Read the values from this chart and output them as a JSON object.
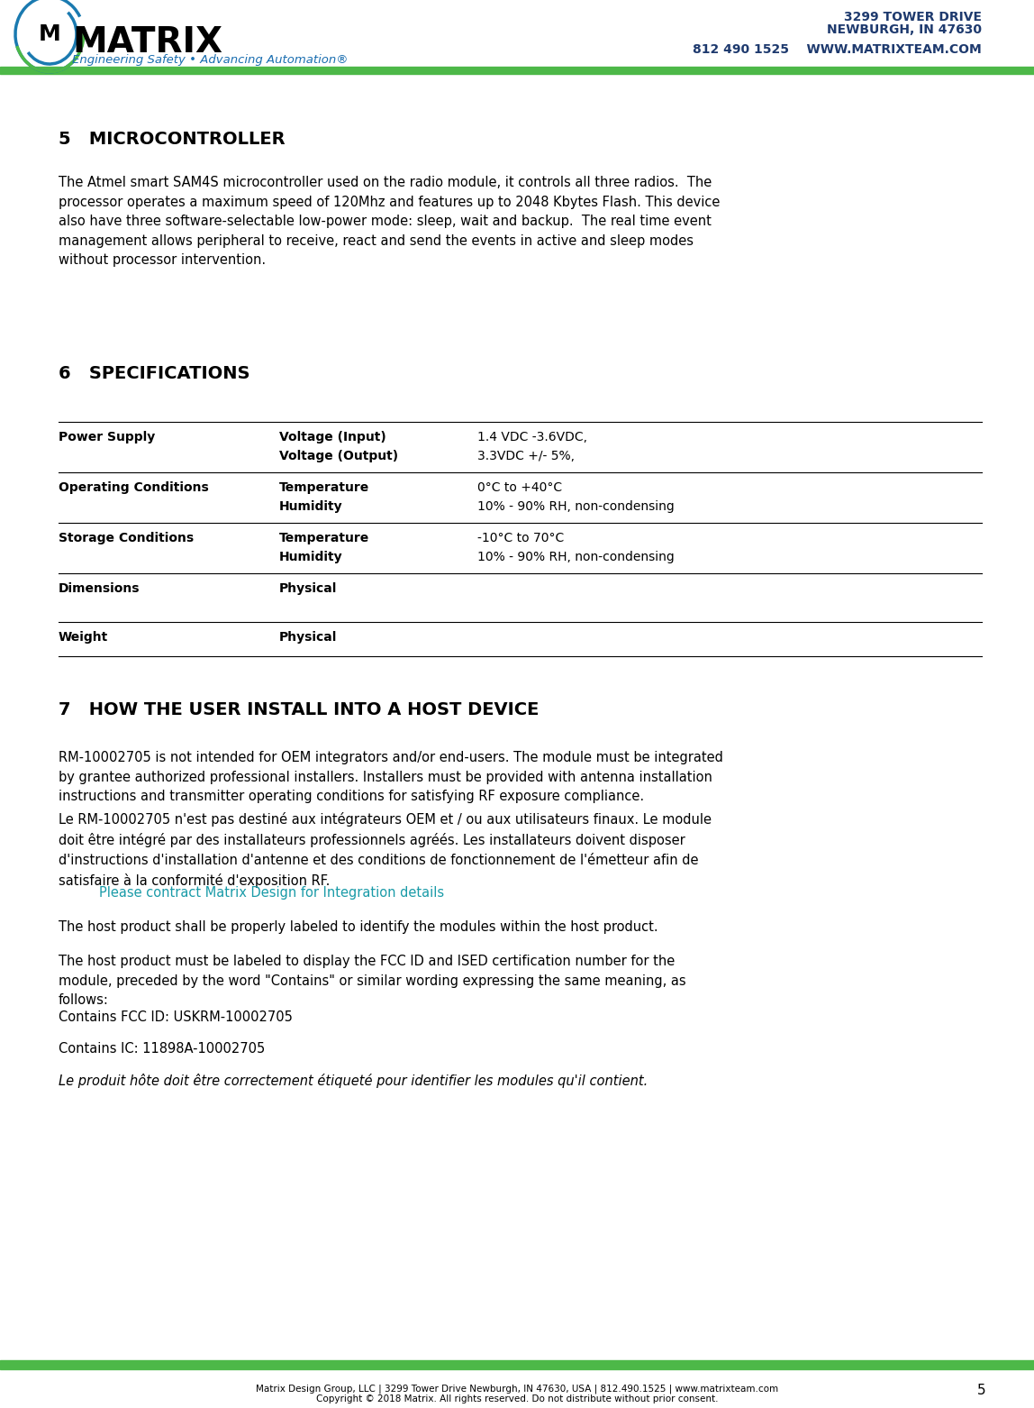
{
  "page_bg": "#ffffff",
  "header_bar_color": "#4db848",
  "footer_bar_color": "#4db848",
  "company_name": "MATRIX",
  "company_tagline": "Engineering Safety • Advancing Automation®",
  "address_line1": "3299 TOWER DRIVE",
  "address_line2": "NEWBURGH, IN 47630",
  "address_line3": "812 490 1525    WWW.MATRIXTEAM.COM",
  "header_text_color": "#1e3a6e",
  "section5_title": "5   MICROCONTROLLER",
  "section5_body": "The Atmel smart SAM4S microcontroller used on the radio module, it controls all three radios.  The\nprocessor operates a maximum speed of 120Mhz and features up to 2048 Kbytes Flash. This device\nalso have three software-selectable low-power mode: sleep, wait and backup.  The real time event\nmanagement allows peripheral to receive, react and send the events in active and sleep modes\nwithout processor intervention.",
  "section6_title": "6   SPECIFICATIONS",
  "table_rows": [
    {
      "col1": "Power Supply",
      "col2": "Voltage (Input)\nVoltage (Output)",
      "col3": "1.4 VDC -3.6VDC,\n3.3VDC +/- 5%,",
      "row_lines": 2
    },
    {
      "col1": "Operating Conditions",
      "col2": "Temperature\nHumidity",
      "col3": "0°C to +40°C\n10% - 90% RH, non-condensing",
      "row_lines": 2
    },
    {
      "col1": "Storage Conditions",
      "col2": "Temperature\nHumidity",
      "col3": "-10°C to 70°C\n10% - 90% RH, non-condensing",
      "row_lines": 2
    },
    {
      "col1": "Dimensions",
      "col2": "Physical",
      "col3": "",
      "row_lines": 1,
      "extra": true
    },
    {
      "col1": "Weight",
      "col2": "Physical",
      "col3": "",
      "row_lines": 1
    }
  ],
  "section7_title": "7   HOW THE USER INSTALL INTO A HOST DEVICE",
  "section7_para1": "RM-10002705 is not intended for OEM integrators and/or end-users. The module must be integrated\nby grantee authorized professional installers. Installers must be provided with antenna installation\ninstructions and transmitter operating conditions for satisfying RF exposure compliance.",
  "section7_para2": "Le RM-10002705 n'est pas destiné aux intégrateurs OEM et / ou aux utilisateurs finaux. Le module\ndoit être intégré par des installateurs professionnels agréés. Les installateurs doivent disposer\nd'instructions d'installation d'antenne et des conditions de fonctionnement de l'émetteur afin de\nsatisfaire à la conformité d'exposition RF.",
  "section7_contact": "Please contract Matrix Design for Integration details",
  "contact_color": "#1a9ba8",
  "section7_para3": "The host product shall be properly labeled to identify the modules within the host product.",
  "section7_para4": "The host product must be labeled to display the FCC ID and ISED certification number for the\nmodule, preceded by the word \"Contains\" or similar wording expressing the same meaning, as\nfollows:",
  "section7_fcc": "Contains FCC ID: USKRM-10002705",
  "section7_ic": "Contains IC: 11898A-10002705",
  "section7_french": "Le produit hôte doit être correctement étiqueté pour identifier les modules qu'il contient.",
  "footer_text1": "Matrix Design Group, LLC | 3299 Tower Drive Newburgh, IN 47630, USA | 812.490.1525 | www.matrixteam.com",
  "footer_text2": "Copyright © 2018 Matrix. All rights reserved. Do not distribute without prior consent.",
  "page_number": "5"
}
